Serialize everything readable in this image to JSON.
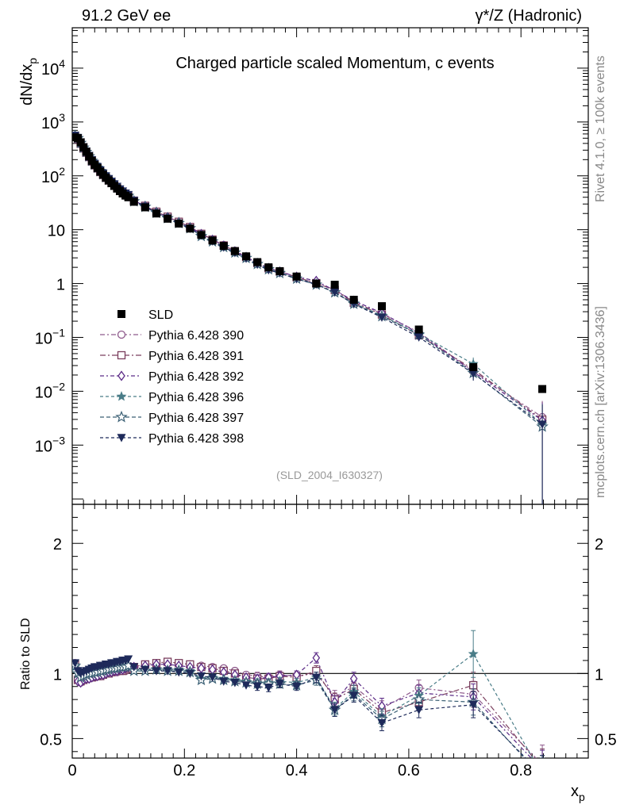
{
  "chart_data": {
    "type": "scatter",
    "header": {
      "left": "91.2 GeV ee",
      "right": "γ*/Z (Hadronic)"
    },
    "title": "Charged particle scaled Momentum, c events",
    "analysis_tag": "(SLD_2004_I630327)",
    "side_text_top": "Rivet 4.1.0, ≥ 100k events",
    "side_text_bottom": "mcplots.cern.ch [arXiv:1306.3436]",
    "xlabel": "x",
    "xlabel_sub": "p",
    "ylabel_main": "dN/dx",
    "ylabel_main_sub": "p",
    "ylabel_ratio": "Ratio to SLD",
    "xlim": [
      0,
      0.92
    ],
    "ylim_main_log10": [
      -4.1,
      4.75
    ],
    "ylim_ratio": [
      0.35,
      2.3
    ],
    "x_ticks": [
      {
        "v": 0,
        "label": "0"
      },
      {
        "v": 0.2,
        "label": "0.2"
      },
      {
        "v": 0.4,
        "label": "0.4"
      },
      {
        "v": 0.6,
        "label": "0.6"
      },
      {
        "v": 0.8,
        "label": "0.8"
      }
    ],
    "y_ticks_main": [
      {
        "exp": -3,
        "base": "10",
        "sup": "−3"
      },
      {
        "exp": -2,
        "base": "10",
        "sup": "−2"
      },
      {
        "exp": -1,
        "base": "10",
        "sup": "−1"
      },
      {
        "exp": 0,
        "base": "1",
        "sup": ""
      },
      {
        "exp": 1,
        "base": "10",
        "sup": ""
      },
      {
        "exp": 2,
        "base": "10",
        "sup": "2"
      },
      {
        "exp": 3,
        "base": "10",
        "sup": "3"
      },
      {
        "exp": 4,
        "base": "10",
        "sup": "4"
      }
    ],
    "y_ticks_ratio": [
      {
        "v": 0.5,
        "label": "0.5"
      },
      {
        "v": 1,
        "label": "1"
      },
      {
        "v": 2,
        "label": "2"
      }
    ],
    "x": [
      0.005,
      0.01,
      0.015,
      0.02,
      0.025,
      0.03,
      0.035,
      0.04,
      0.045,
      0.05,
      0.055,
      0.06,
      0.065,
      0.07,
      0.075,
      0.08,
      0.085,
      0.09,
      0.095,
      0.1,
      0.11,
      0.13,
      0.15,
      0.17,
      0.19,
      0.21,
      0.23,
      0.25,
      0.27,
      0.29,
      0.31,
      0.33,
      0.35,
      0.37,
      0.4,
      0.435,
      0.468,
      0.502,
      0.552,
      0.618,
      0.715,
      0.838
    ],
    "data": {
      "name": "SLD",
      "values": [
        520,
        500,
        420,
        340,
        280,
        230,
        190,
        160,
        140,
        120,
        105,
        92,
        82,
        73,
        65,
        58,
        52,
        47,
        43,
        40,
        33,
        26,
        20,
        16,
        13,
        10.5,
        8.0,
        6.3,
        5.0,
        4.0,
        3.2,
        2.5,
        2.0,
        1.7,
        1.35,
        1.0,
        0.95,
        0.5,
        0.38,
        0.14,
        0.028,
        0.011
      ]
    },
    "series": [
      {
        "name": "Pythia 6.428 390",
        "color": "#8e5a8c",
        "marker": "circle-open",
        "dash": "6,3,2,3",
        "ratio": [
          1.08,
          0.95,
          0.93,
          0.95,
          0.96,
          0.96,
          0.97,
          0.97,
          0.98,
          0.98,
          0.99,
          1.0,
          1.0,
          1.01,
          1.01,
          1.01,
          1.02,
          1.02,
          1.02,
          1.03,
          1.04,
          1.06,
          1.07,
          1.08,
          1.08,
          1.07,
          1.06,
          1.05,
          1.04,
          1.02,
          0.99,
          0.98,
          0.97,
          0.99,
          0.98,
          1.0,
          0.82,
          0.9,
          0.73,
          0.89,
          0.84,
          0.3
        ],
        "err": [
          0.02,
          0.02,
          0.02,
          0.02,
          0.02,
          0.02,
          0.02,
          0.02,
          0.02,
          0.02,
          0.02,
          0.02,
          0.02,
          0.02,
          0.02,
          0.02,
          0.02,
          0.02,
          0.02,
          0.02,
          0.02,
          0.02,
          0.02,
          0.02,
          0.02,
          0.02,
          0.02,
          0.02,
          0.02,
          0.02,
          0.02,
          0.03,
          0.03,
          0.03,
          0.03,
          0.04,
          0.05,
          0.05,
          0.06,
          0.06,
          0.1,
          0.15
        ]
      },
      {
        "name": "Pythia 6.428 391",
        "color": "#7b3f5e",
        "marker": "square-open",
        "dash": "7,3,2,3",
        "ratio": [
          1.07,
          0.95,
          0.94,
          0.95,
          0.96,
          0.97,
          0.97,
          0.98,
          0.98,
          0.98,
          0.99,
          1.0,
          1.0,
          1.01,
          1.02,
          1.02,
          1.02,
          1.02,
          1.03,
          1.04,
          1.05,
          1.07,
          1.08,
          1.09,
          1.08,
          1.07,
          1.05,
          1.04,
          1.02,
          1.0,
          0.97,
          0.96,
          0.96,
          0.98,
          0.97,
          1.02,
          0.8,
          0.88,
          0.7,
          0.78,
          0.91,
          0.27
        ],
        "err": [
          0.02,
          0.02,
          0.02,
          0.02,
          0.02,
          0.02,
          0.02,
          0.02,
          0.02,
          0.02,
          0.02,
          0.02,
          0.02,
          0.02,
          0.02,
          0.02,
          0.02,
          0.02,
          0.02,
          0.02,
          0.02,
          0.02,
          0.02,
          0.02,
          0.02,
          0.02,
          0.02,
          0.02,
          0.02,
          0.02,
          0.02,
          0.03,
          0.03,
          0.03,
          0.03,
          0.04,
          0.05,
          0.05,
          0.06,
          0.06,
          0.1,
          0.15
        ]
      },
      {
        "name": "Pythia 6.428 392",
        "color": "#5b2a86",
        "marker": "diamond-open",
        "dash": "5,3,2,3",
        "ratio": [
          1.06,
          0.94,
          0.93,
          0.95,
          0.96,
          0.96,
          0.97,
          0.98,
          0.98,
          0.99,
          0.99,
          1.0,
          1.01,
          1.01,
          1.02,
          1.02,
          1.03,
          1.03,
          1.04,
          1.05,
          1.05,
          1.06,
          1.07,
          1.07,
          1.06,
          1.05,
          1.04,
          1.03,
          1.01,
          0.99,
          0.97,
          0.96,
          0.97,
          0.98,
          0.99,
          1.12,
          0.78,
          0.96,
          0.75,
          0.85,
          0.82,
          0.26
        ],
        "err": [
          0.02,
          0.02,
          0.02,
          0.02,
          0.02,
          0.02,
          0.02,
          0.02,
          0.02,
          0.02,
          0.02,
          0.02,
          0.02,
          0.02,
          0.02,
          0.02,
          0.02,
          0.02,
          0.02,
          0.02,
          0.02,
          0.02,
          0.02,
          0.02,
          0.02,
          0.02,
          0.02,
          0.02,
          0.02,
          0.02,
          0.02,
          0.03,
          0.03,
          0.03,
          0.03,
          0.04,
          0.05,
          0.05,
          0.06,
          0.06,
          0.1,
          0.15
        ]
      },
      {
        "name": "Pythia 6.428 396",
        "color": "#4a7d88",
        "marker": "star-filled",
        "dash": "4,3",
        "ratio": [
          1.05,
          1.0,
          0.97,
          0.98,
          0.99,
          1.0,
          1.0,
          1.01,
          1.01,
          1.02,
          1.02,
          1.03,
          1.03,
          1.04,
          1.04,
          1.04,
          1.05,
          1.05,
          1.05,
          1.06,
          1.02,
          1.02,
          1.03,
          1.03,
          1.03,
          1.02,
          0.96,
          0.97,
          0.96,
          0.95,
          0.94,
          0.93,
          0.93,
          0.94,
          0.93,
          0.97,
          0.73,
          0.86,
          0.67,
          0.83,
          1.15,
          0.22
        ],
        "err": [
          0.02,
          0.02,
          0.02,
          0.02,
          0.02,
          0.02,
          0.02,
          0.02,
          0.02,
          0.02,
          0.02,
          0.02,
          0.02,
          0.02,
          0.02,
          0.02,
          0.02,
          0.02,
          0.02,
          0.02,
          0.02,
          0.02,
          0.02,
          0.02,
          0.02,
          0.02,
          0.02,
          0.02,
          0.02,
          0.02,
          0.02,
          0.03,
          0.03,
          0.03,
          0.03,
          0.04,
          0.05,
          0.05,
          0.06,
          0.06,
          0.18,
          0.15
        ]
      },
      {
        "name": "Pythia 6.428 397",
        "color": "#3a5f74",
        "marker": "star-open",
        "dash": "5,3",
        "ratio": [
          1.06,
          1.0,
          0.97,
          0.98,
          0.99,
          1.0,
          1.0,
          1.01,
          1.01,
          1.02,
          1.02,
          1.03,
          1.03,
          1.04,
          1.04,
          1.04,
          1.05,
          1.05,
          1.05,
          1.06,
          1.02,
          1.02,
          1.03,
          1.02,
          1.02,
          1.01,
          0.95,
          0.96,
          0.95,
          0.94,
          0.93,
          0.92,
          0.92,
          0.92,
          0.91,
          0.95,
          0.72,
          0.84,
          0.65,
          0.8,
          0.78,
          0.2
        ],
        "err": [
          0.02,
          0.02,
          0.02,
          0.02,
          0.02,
          0.02,
          0.02,
          0.02,
          0.02,
          0.02,
          0.02,
          0.02,
          0.02,
          0.02,
          0.02,
          0.02,
          0.02,
          0.02,
          0.02,
          0.02,
          0.02,
          0.02,
          0.02,
          0.02,
          0.02,
          0.02,
          0.02,
          0.02,
          0.02,
          0.02,
          0.02,
          0.03,
          0.03,
          0.03,
          0.03,
          0.04,
          0.05,
          0.05,
          0.06,
          0.06,
          0.1,
          0.15
        ]
      },
      {
        "name": "Pythia 6.428 398",
        "color": "#1e2a5a",
        "marker": "triangle-down-filled",
        "dash": "4,3",
        "ratio": [
          1.08,
          1.02,
          1.0,
          1.01,
          1.02,
          1.03,
          1.04,
          1.05,
          1.05,
          1.06,
          1.06,
          1.07,
          1.07,
          1.08,
          1.08,
          1.09,
          1.09,
          1.1,
          1.1,
          1.11,
          1.05,
          1.03,
          1.02,
          1.02,
          1.01,
          1.0,
          0.98,
          0.97,
          0.94,
          0.93,
          0.91,
          0.9,
          0.89,
          0.92,
          0.9,
          0.97,
          0.72,
          0.83,
          0.62,
          0.72,
          0.76,
          0.22
        ],
        "err": [
          0.02,
          0.02,
          0.02,
          0.02,
          0.02,
          0.02,
          0.02,
          0.02,
          0.02,
          0.02,
          0.02,
          0.02,
          0.02,
          0.02,
          0.02,
          0.02,
          0.02,
          0.02,
          0.02,
          0.02,
          0.02,
          0.02,
          0.02,
          0.02,
          0.02,
          0.02,
          0.02,
          0.02,
          0.02,
          0.02,
          0.02,
          0.03,
          0.03,
          0.03,
          0.03,
          0.04,
          0.05,
          0.05,
          0.06,
          0.06,
          0.1,
          0.15
        ]
      }
    ]
  }
}
